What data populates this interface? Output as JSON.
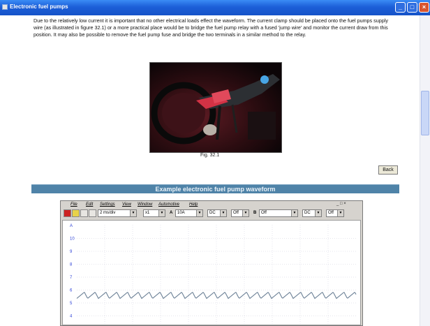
{
  "window": {
    "title": "Electronic fuel pumps"
  },
  "content": {
    "paragraph": "Due to the relatively low current it is important that no other electrical loads effect the waveform. The current clamp should be placed onto the fuel pumps supply wire (as illustrated in figure 32.1) or a more practical place would be to bridge the fuel pump relay with a fused 'jump wire' and monitor the current draw from this position. It may also be possible to remove the fuel pump fuse and bridge the two terminals in a similar method to the relay.",
    "figure_caption": "Fig. 32.1",
    "back_button": "Back",
    "section_title": "Example electronic fuel pump waveform"
  },
  "scope": {
    "menu": [
      "File",
      "Edit",
      "Settings",
      "View",
      "Window",
      "Automotive",
      "Help"
    ],
    "window_controls": "_ □ ×",
    "toolbar": {
      "timebase": "2 ms/div",
      "multiplier": "x1",
      "channel_a_label": "A",
      "channel_a_range": "10A",
      "channel_a_coupling": "DC",
      "channel_a_state": "Off",
      "channel_b_label": "B",
      "channel_b_range": "Off",
      "channel_b_coupling": "DC",
      "channel_b_state": "Off"
    },
    "y_axis_labels": [
      "A",
      "10",
      "9",
      "8",
      "7",
      "6",
      "5",
      "4"
    ]
  },
  "colors": {
    "titlebar": "#1c5fd8",
    "section_bar": "#4f83a8",
    "trace": "#6a7f95",
    "axis_labels": "#2b3fd6"
  }
}
